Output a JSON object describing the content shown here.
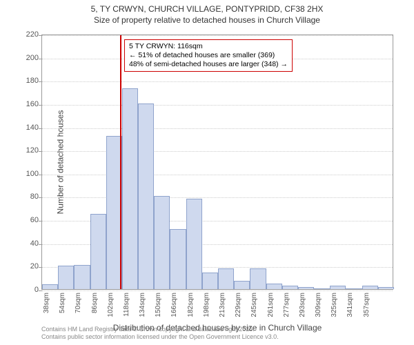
{
  "title": {
    "line1": "5, TY CRWYN, CHURCH VILLAGE, PONTYPRIDD, CF38 2HX",
    "line2": "Size of property relative to detached houses in Church Village"
  },
  "chart": {
    "type": "histogram",
    "ylabel": "Number of detached houses",
    "xlabel": "Distribution of detached houses by size in Church Village",
    "ylim": [
      0,
      220
    ],
    "ytick_step": 20,
    "bar_fill": "#cfd9ee",
    "bar_stroke": "#8fa3cc",
    "background": "#ffffff",
    "grid_color": "#cccccc",
    "axis_color": "#999999",
    "marker": {
      "value": 116,
      "color": "#cc0000",
      "box_border": "#cc0000",
      "box_bg": "#ffffff",
      "lines": [
        "5 TY CRWYN: 116sqm",
        "← 51% of detached houses are smaller (369)",
        "48% of semi-detached houses are larger (348) →"
      ]
    },
    "x_start": 38,
    "x_bin_width": 16,
    "x_labels": [
      "38sqm",
      "54sqm",
      "70sqm",
      "86sqm",
      "102sqm",
      "118sqm",
      "134sqm",
      "150sqm",
      "166sqm",
      "182sqm",
      "198sqm",
      "213sqm",
      "229sqm",
      "245sqm",
      "261sqm",
      "277sqm",
      "293sqm",
      "309sqm",
      "325sqm",
      "341sqm",
      "357sqm"
    ],
    "values": [
      4,
      20,
      21,
      65,
      132,
      173,
      160,
      80,
      52,
      78,
      14,
      18,
      7,
      18,
      5,
      3,
      2,
      0,
      3,
      0,
      3,
      2
    ]
  },
  "footer": {
    "line1": "Contains HM Land Registry data © Crown copyright and database right 2025.",
    "line2": "Contains public sector information licensed under the Open Government Licence v3.0."
  }
}
